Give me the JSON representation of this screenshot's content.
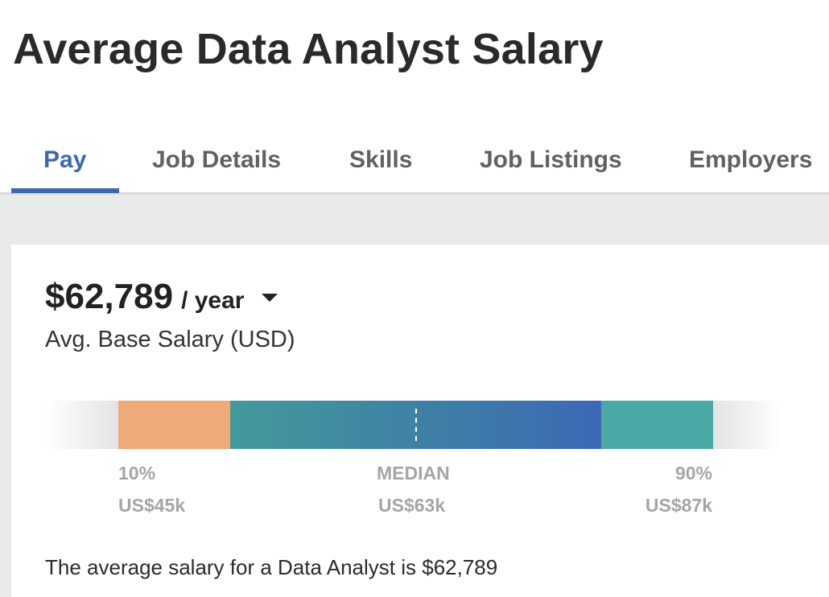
{
  "page": {
    "title": "Average Data Analyst Salary"
  },
  "tabs": [
    {
      "label": "Pay",
      "active": true
    },
    {
      "label": "Job Details",
      "active": false
    },
    {
      "label": "Skills",
      "active": false
    },
    {
      "label": "Job Listings",
      "active": false
    },
    {
      "label": "Employers",
      "active": false
    }
  ],
  "salary": {
    "amount": "$62,789",
    "period": "/ year",
    "subtitle": "Avg. Base Salary (USD)"
  },
  "distribution": {
    "p10_label": "10%",
    "p10_value": "US$45k",
    "median_label": "MEDIAN",
    "median_value": "US$63k",
    "p90_label": "90%",
    "p90_value": "US$87k",
    "colors": {
      "low": "#eeaa78",
      "mid_start": "#449a9b",
      "mid_end": "#3d68b6",
      "high": "#4aa9a5"
    }
  },
  "summary": "The average salary for a Data Analyst is $62,789",
  "theme": {
    "accent": "#3f67ad"
  }
}
